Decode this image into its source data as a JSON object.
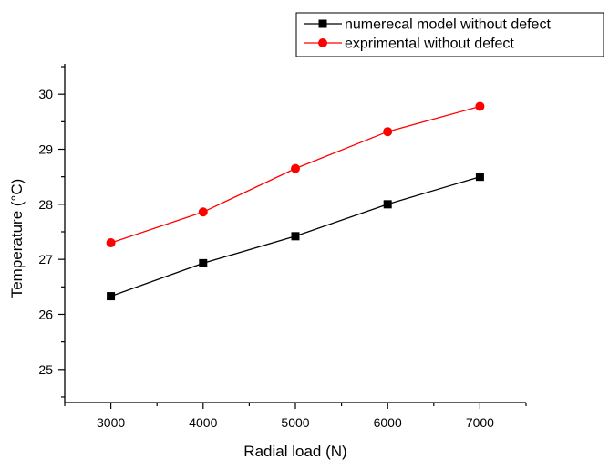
{
  "chart_data": {
    "type": "line",
    "xlabel": "Radial load (N)",
    "ylabel": "Temperature (°C)",
    "x": [
      3000,
      4000,
      5000,
      6000,
      7000
    ],
    "xlim": [
      2500,
      7500
    ],
    "ylim": [
      24.4,
      30.55
    ],
    "xticks": [
      3000,
      4000,
      5000,
      6000,
      7000
    ],
    "yticks": [
      25,
      26,
      27,
      28,
      29,
      30
    ],
    "grid": false,
    "legend_position": "top-right",
    "series": [
      {
        "name": "numerecal model without defect",
        "values": [
          26.33,
          26.93,
          27.42,
          28.0,
          28.5
        ],
        "color": "#000000",
        "marker": "square"
      },
      {
        "name": "exprimental without defect",
        "values": [
          27.3,
          27.86,
          28.65,
          29.32,
          29.78
        ],
        "color": "#ff0000",
        "marker": "circle"
      }
    ]
  }
}
